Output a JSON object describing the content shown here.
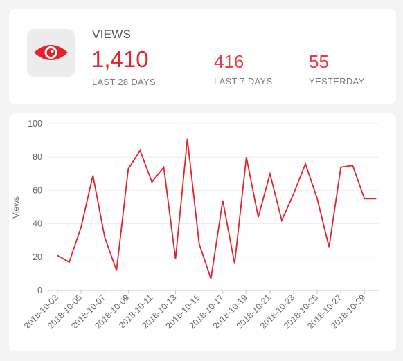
{
  "stats": {
    "title": "VIEWS",
    "main": {
      "value": "1,410",
      "label": "LAST 28 DAYS"
    },
    "secondary": [
      {
        "value": "416",
        "label": "LAST 7 DAYS"
      },
      {
        "value": "55",
        "label": "YESTERDAY"
      }
    ],
    "icon": "eye-icon",
    "accent_color": "#e3222b"
  },
  "chart_data": {
    "type": "line",
    "ylabel": "Views",
    "xlabel": "",
    "ylim": [
      0,
      100
    ],
    "yticks": [
      0,
      20,
      40,
      60,
      80,
      100
    ],
    "x": [
      "2018-10-03",
      "2018-10-04",
      "2018-10-05",
      "2018-10-06",
      "2018-10-07",
      "2018-10-08",
      "2018-10-09",
      "2018-10-10",
      "2018-10-11",
      "2018-10-12",
      "2018-10-13",
      "2018-10-14",
      "2018-10-15",
      "2018-10-16",
      "2018-10-17",
      "2018-10-18",
      "2018-10-19",
      "2018-10-20",
      "2018-10-21",
      "2018-10-22",
      "2018-10-23",
      "2018-10-24",
      "2018-10-25",
      "2018-10-26",
      "2018-10-27",
      "2018-10-28",
      "2018-10-29",
      "2018-10-30"
    ],
    "x_tick_labels": [
      "2018-10-03",
      "2018-10-05",
      "2018-10-07",
      "2018-10-09",
      "2018-10-11",
      "2018-10-13",
      "2018-10-15",
      "2018-10-17",
      "2018-10-19",
      "2018-10-21",
      "2018-10-23",
      "2018-10-25",
      "2018-10-27",
      "2018-10-29"
    ],
    "series": [
      {
        "values": [
          21,
          17,
          38,
          69,
          32,
          12,
          73,
          84,
          65,
          74,
          19,
          91,
          28,
          7,
          54,
          16,
          80,
          44,
          70,
          42,
          58,
          76,
          55,
          26,
          74,
          75,
          55,
          55
        ]
      }
    ],
    "grid": true,
    "line_color": "#e3222b"
  }
}
